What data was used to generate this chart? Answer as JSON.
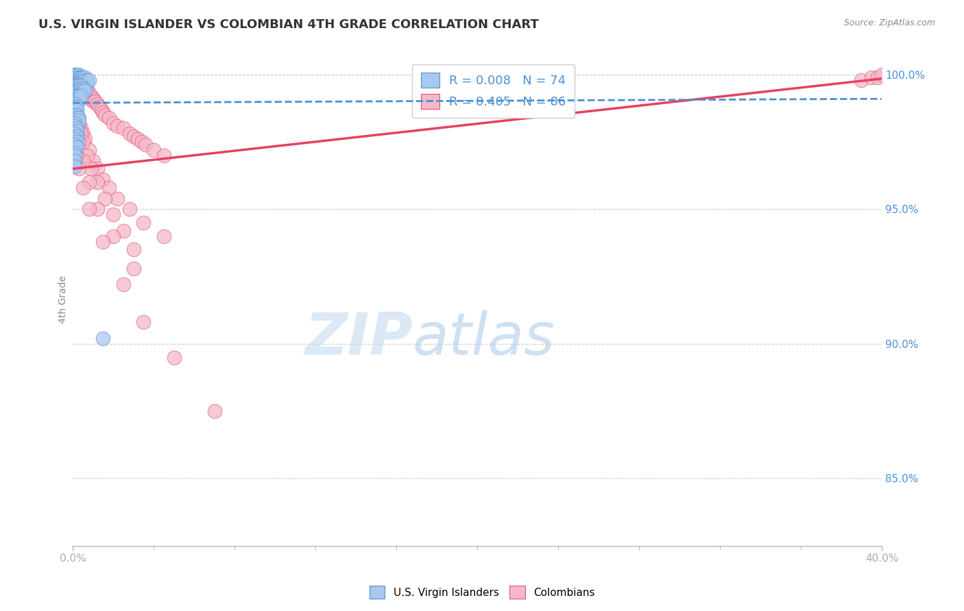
{
  "title": "U.S. VIRGIN ISLANDER VS COLOMBIAN 4TH GRADE CORRELATION CHART",
  "source": "Source: ZipAtlas.com",
  "ylabel": "4th Grade",
  "xlim": [
    0.0,
    0.4
  ],
  "ylim": [
    0.825,
    1.008
  ],
  "yticks": [
    0.85,
    0.9,
    0.95,
    1.0
  ],
  "ytick_labels": [
    "85.0%",
    "90.0%",
    "95.0%",
    "100.0%"
  ],
  "xtick_labels": [
    "0.0%",
    "40.0%"
  ],
  "xtick_positions": [
    0.0,
    0.4
  ],
  "blue_color": "#a8c8f0",
  "pink_color": "#f5b8c8",
  "blue_edge_color": "#5590c8",
  "pink_edge_color": "#e05070",
  "blue_line_color": "#4a8fd4",
  "pink_line_color": "#e84060",
  "watermark_zip": "ZIP",
  "watermark_atlas": "atlas",
  "watermark_color_zip": "#c0d8ee",
  "watermark_color_atlas": "#a8c8e8",
  "blue_scatter_x": [
    0.001,
    0.001,
    0.001,
    0.001,
    0.002,
    0.002,
    0.002,
    0.002,
    0.002,
    0.002,
    0.002,
    0.003,
    0.003,
    0.003,
    0.003,
    0.003,
    0.003,
    0.003,
    0.004,
    0.004,
    0.004,
    0.004,
    0.005,
    0.005,
    0.005,
    0.006,
    0.006,
    0.007,
    0.007,
    0.008,
    0.001,
    0.001,
    0.002,
    0.002,
    0.002,
    0.003,
    0.003,
    0.003,
    0.004,
    0.004,
    0.005,
    0.005,
    0.006,
    0.001,
    0.001,
    0.002,
    0.002,
    0.003,
    0.003,
    0.004,
    0.001,
    0.001,
    0.002,
    0.002,
    0.001,
    0.002,
    0.002,
    0.003,
    0.003,
    0.001,
    0.001,
    0.002,
    0.002,
    0.001,
    0.002,
    0.001,
    0.002,
    0.001,
    0.002,
    0.001,
    0.001,
    0.001,
    0.001,
    0.015
  ],
  "blue_scatter_y": [
    1.0,
    1.0,
    0.999,
    0.999,
    1.0,
    1.0,
    0.999,
    0.999,
    0.998,
    0.998,
    0.997,
    1.0,
    0.999,
    0.999,
    0.998,
    0.998,
    0.997,
    0.997,
    0.999,
    0.999,
    0.998,
    0.997,
    0.999,
    0.998,
    0.997,
    0.999,
    0.998,
    0.998,
    0.997,
    0.998,
    0.996,
    0.995,
    0.996,
    0.995,
    0.994,
    0.996,
    0.995,
    0.994,
    0.996,
    0.995,
    0.995,
    0.994,
    0.994,
    0.992,
    0.991,
    0.992,
    0.991,
    0.992,
    0.991,
    0.992,
    0.989,
    0.988,
    0.988,
    0.987,
    0.985,
    0.985,
    0.984,
    0.984,
    0.983,
    0.982,
    0.981,
    0.98,
    0.979,
    0.978,
    0.977,
    0.976,
    0.975,
    0.974,
    0.973,
    0.971,
    0.97,
    0.968,
    0.966,
    0.902
  ],
  "pink_scatter_x": [
    0.001,
    0.001,
    0.001,
    0.002,
    0.002,
    0.002,
    0.003,
    0.003,
    0.003,
    0.004,
    0.004,
    0.004,
    0.005,
    0.005,
    0.006,
    0.006,
    0.007,
    0.007,
    0.008,
    0.008,
    0.009,
    0.01,
    0.01,
    0.011,
    0.012,
    0.013,
    0.014,
    0.015,
    0.016,
    0.018,
    0.02,
    0.022,
    0.025,
    0.028,
    0.03,
    0.032,
    0.034,
    0.036,
    0.04,
    0.045,
    0.002,
    0.003,
    0.004,
    0.005,
    0.006,
    0.008,
    0.01,
    0.012,
    0.015,
    0.018,
    0.022,
    0.028,
    0.035,
    0.045,
    0.001,
    0.002,
    0.003,
    0.004,
    0.005,
    0.007,
    0.009,
    0.012,
    0.016,
    0.02,
    0.025,
    0.03,
    0.002,
    0.003,
    0.005,
    0.008,
    0.012,
    0.02,
    0.03,
    0.002,
    0.003,
    0.005,
    0.008,
    0.015,
    0.025,
    0.035,
    0.05,
    0.07,
    0.39,
    0.395,
    0.398,
    0.4
  ],
  "pink_scatter_y": [
    0.998,
    0.997,
    0.996,
    0.999,
    0.998,
    0.996,
    0.997,
    0.996,
    0.994,
    0.997,
    0.996,
    0.994,
    0.996,
    0.994,
    0.995,
    0.993,
    0.994,
    0.992,
    0.993,
    0.991,
    0.992,
    0.991,
    0.99,
    0.99,
    0.989,
    0.988,
    0.987,
    0.986,
    0.985,
    0.984,
    0.982,
    0.981,
    0.98,
    0.978,
    0.977,
    0.976,
    0.975,
    0.974,
    0.972,
    0.97,
    0.984,
    0.982,
    0.98,
    0.978,
    0.976,
    0.972,
    0.968,
    0.965,
    0.961,
    0.958,
    0.954,
    0.95,
    0.945,
    0.94,
    0.988,
    0.985,
    0.982,
    0.978,
    0.975,
    0.97,
    0.965,
    0.96,
    0.954,
    0.948,
    0.942,
    0.935,
    0.978,
    0.975,
    0.968,
    0.96,
    0.95,
    0.94,
    0.928,
    0.97,
    0.965,
    0.958,
    0.95,
    0.938,
    0.922,
    0.908,
    0.895,
    0.875,
    0.998,
    0.999,
    0.999,
    1.0
  ],
  "blue_trend_x": [
    0.0,
    0.4
  ],
  "blue_trend_y": [
    0.9895,
    0.991
  ],
  "pink_trend_x": [
    0.0,
    0.4
  ],
  "pink_trend_y": [
    0.965,
    0.9985
  ]
}
